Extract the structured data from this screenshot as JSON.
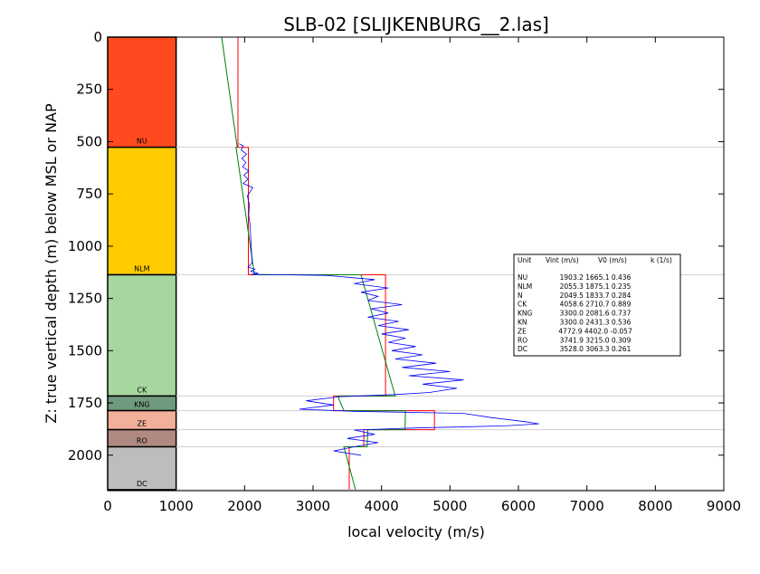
{
  "chart_data": {
    "type": "line",
    "title": "SLB-02 [SLIJKENBURG__2.las]",
    "xlabel": "local velocity (m/s)",
    "ylabel": "Z: true vertical depth (m) below MSL or NAP",
    "xlim": [
      0,
      9000
    ],
    "ylim": [
      0,
      2170
    ],
    "y_inverted": true,
    "x_ticks": [
      0,
      1000,
      2000,
      3000,
      4000,
      5000,
      6000,
      7000,
      8000,
      9000
    ],
    "y_ticks": [
      0,
      250,
      500,
      750,
      1000,
      1250,
      1500,
      1750,
      2000
    ],
    "grid": false,
    "units_strip": [
      {
        "name": "NU",
        "top": 0,
        "bottom": 527,
        "color": "#ff4a1f"
      },
      {
        "name": "NLM",
        "top": 527,
        "bottom": 1137,
        "color": "#ffcc00"
      },
      {
        "name": "CK",
        "top": 1137,
        "bottom": 1717,
        "color": "#a6d79e"
      },
      {
        "name": "KNG",
        "top": 1717,
        "bottom": 1787,
        "color": "#6f9a7e"
      },
      {
        "name": "ZE",
        "top": 1787,
        "bottom": 1878,
        "color": "#f2b09a"
      },
      {
        "name": "RO",
        "top": 1878,
        "bottom": 1960,
        "color": "#b08a82"
      },
      {
        "name": "DC",
        "top": 1960,
        "bottom": 2165,
        "color": "#bdbdbd"
      }
    ],
    "series": [
      {
        "color": "#ff0000",
        "points": [
          [
            1903,
            0
          ],
          [
            1903,
            527
          ],
          [
            1903,
            527
          ],
          [
            2055,
            527
          ],
          [
            2055,
            1137
          ],
          [
            4059,
            1137
          ],
          [
            4059,
            1717
          ],
          [
            3300,
            1717
          ],
          [
            3300,
            1787
          ],
          [
            4773,
            1787
          ],
          [
            4773,
            1878
          ],
          [
            3742,
            1878
          ],
          [
            3742,
            1960
          ],
          [
            3528,
            1960
          ],
          [
            3528,
            2165
          ]
        ]
      },
      {
        "color": "#008000",
        "points": [
          [
            1665,
            0
          ],
          [
            1893,
            527
          ],
          [
            1875,
            527
          ],
          [
            2144,
            1137
          ],
          [
            3700,
            1137
          ],
          [
            4200,
            1717
          ],
          [
            3360,
            1717
          ],
          [
            3450,
            1787
          ],
          [
            4350,
            1787
          ],
          [
            4344,
            1878
          ],
          [
            3800,
            1878
          ],
          [
            3790,
            1960
          ],
          [
            3450,
            1960
          ],
          [
            3620,
            2165
          ]
        ]
      },
      {
        "color": "#0000ff",
        "points": [
          [
            1920,
            510
          ],
          [
            1980,
            520
          ],
          [
            1950,
            540
          ],
          [
            2030,
            560
          ],
          [
            1960,
            580
          ],
          [
            2020,
            600
          ],
          [
            1970,
            620
          ],
          [
            2060,
            640
          ],
          [
            1990,
            660
          ],
          [
            2050,
            680
          ],
          [
            1980,
            700
          ],
          [
            2120,
            720
          ],
          [
            2080,
            740
          ],
          [
            2040,
            760
          ],
          [
            2070,
            800
          ],
          [
            2060,
            850
          ],
          [
            2080,
            900
          ],
          [
            2090,
            960
          ],
          [
            2100,
            1020
          ],
          [
            2110,
            1080
          ],
          [
            2050,
            1100
          ],
          [
            2150,
            1110
          ],
          [
            2090,
            1120
          ],
          [
            2200,
            1130
          ],
          [
            2100,
            1135
          ],
          [
            3200,
            1140
          ],
          [
            3900,
            1160
          ],
          [
            3600,
            1180
          ],
          [
            4100,
            1200
          ],
          [
            3700,
            1220
          ],
          [
            3950,
            1240
          ],
          [
            3800,
            1260
          ],
          [
            4300,
            1280
          ],
          [
            3850,
            1300
          ],
          [
            4100,
            1320
          ],
          [
            3800,
            1340
          ],
          [
            4250,
            1360
          ],
          [
            3950,
            1380
          ],
          [
            4400,
            1400
          ],
          [
            4000,
            1420
          ],
          [
            4350,
            1440
          ],
          [
            4100,
            1460
          ],
          [
            4500,
            1480
          ],
          [
            4150,
            1500
          ],
          [
            4600,
            1520
          ],
          [
            4200,
            1540
          ],
          [
            4800,
            1560
          ],
          [
            4300,
            1580
          ],
          [
            5000,
            1600
          ],
          [
            4400,
            1620
          ],
          [
            5200,
            1640
          ],
          [
            4600,
            1660
          ],
          [
            5100,
            1680
          ],
          [
            4700,
            1700
          ],
          [
            4200,
            1710
          ],
          [
            3400,
            1720
          ],
          [
            2900,
            1740
          ],
          [
            3300,
            1760
          ],
          [
            2800,
            1780
          ],
          [
            3600,
            1790
          ],
          [
            5200,
            1800
          ],
          [
            5600,
            1820
          ],
          [
            6100,
            1840
          ],
          [
            6300,
            1850
          ],
          [
            5800,
            1860
          ],
          [
            4500,
            1870
          ],
          [
            3600,
            1880
          ],
          [
            3900,
            1900
          ],
          [
            3500,
            1920
          ],
          [
            3950,
            1940
          ],
          [
            3600,
            1960
          ],
          [
            3300,
            1980
          ],
          [
            3700,
            2000
          ]
        ]
      }
    ],
    "table": {
      "headers": [
        "Unit",
        "Vint (m/s)",
        "V0 (m/s)",
        "k (1/s)"
      ],
      "rows": [
        [
          "NU",
          "1903.2",
          "1665.1",
          "0.436"
        ],
        [
          "NLM",
          "2055.3",
          "1875.1",
          "0.235"
        ],
        [
          "N",
          "2049.5",
          "1833.7",
          "0.284"
        ],
        [
          "CK",
          "4058.6",
          "2710.7",
          "0.889"
        ],
        [
          "KNG",
          "3300.0",
          "2081.6",
          "0.737"
        ],
        [
          "KN",
          "3300.0",
          "2431.3",
          "0.536"
        ],
        [
          "ZE",
          "4772.9",
          "4402.0",
          "-0.057"
        ],
        [
          "RO",
          "3741.9",
          "3215.0",
          "0.309"
        ],
        [
          "DC",
          "3528.0",
          "3063.3",
          "0.261"
        ]
      ]
    }
  }
}
